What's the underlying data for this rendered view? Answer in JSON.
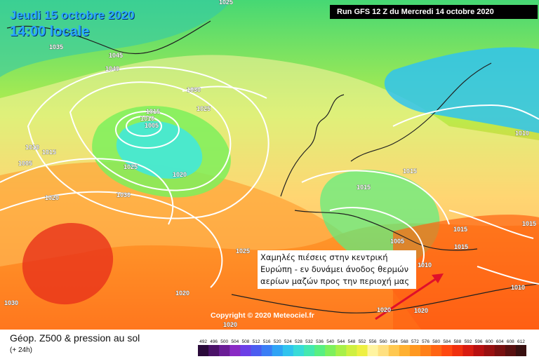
{
  "header": {
    "date_label": "Jeudi 15 octobre 2020",
    "time_label": "14:00 locale",
    "run_label": "Run GFS 12 Z du Mercredi 14 octobre 2020"
  },
  "map": {
    "copyright": "Copyright © 2020 Meteociel.fr",
    "note_lines": [
      "Χαμηλές πιέσεις στην κεντρική",
      "Ευρώπη - εν δυνάμει άνοδος θερμών",
      "αερίων μαζών προς την περιοχή μας"
    ],
    "isobar_labels": [
      "1025",
      "1035",
      "1045",
      "1040",
      "1030",
      "1025",
      "1015",
      "1010",
      "1005",
      "1010",
      "1015",
      "1005",
      "1025",
      "1020",
      "1020",
      "1030",
      "1025",
      "1020",
      "1020",
      "1015",
      "1010",
      "1015",
      "1005",
      "1010",
      "1015",
      "1015",
      "1020",
      "1010",
      "1015",
      "1030",
      "1020"
    ],
    "arrow_color": "#e0102a"
  },
  "footer": {
    "title": "Géop. Z500 & pression au sol",
    "subtitle": "(+ 24h)",
    "legend_ticks": [
      "492",
      "496",
      "500",
      "504",
      "508",
      "512",
      "516",
      "520",
      "524",
      "528",
      "532",
      "536",
      "540",
      "544",
      "548",
      "552",
      "556",
      "560",
      "564",
      "568",
      "572",
      "576",
      "580",
      "584",
      "588",
      "592",
      "596",
      "600",
      "604",
      "608",
      "612"
    ],
    "legend_colors": [
      "#2a0a3a",
      "#4a1268",
      "#6a1d96",
      "#8a2ac4",
      "#6c3ee6",
      "#4b5cf0",
      "#3a7df5",
      "#2fa3f5",
      "#30c3ee",
      "#38dbd8",
      "#44e8b0",
      "#58ef82",
      "#7ef05c",
      "#a8f048",
      "#cff040",
      "#eef042",
      "#fff4a0",
      "#ffe080",
      "#ffc850",
      "#ffb030",
      "#ff9820",
      "#ff8018",
      "#ff6412",
      "#ff4810",
      "#f0300e",
      "#d81c10",
      "#b81010",
      "#981010",
      "#781010",
      "#581010",
      "#381010"
    ]
  }
}
